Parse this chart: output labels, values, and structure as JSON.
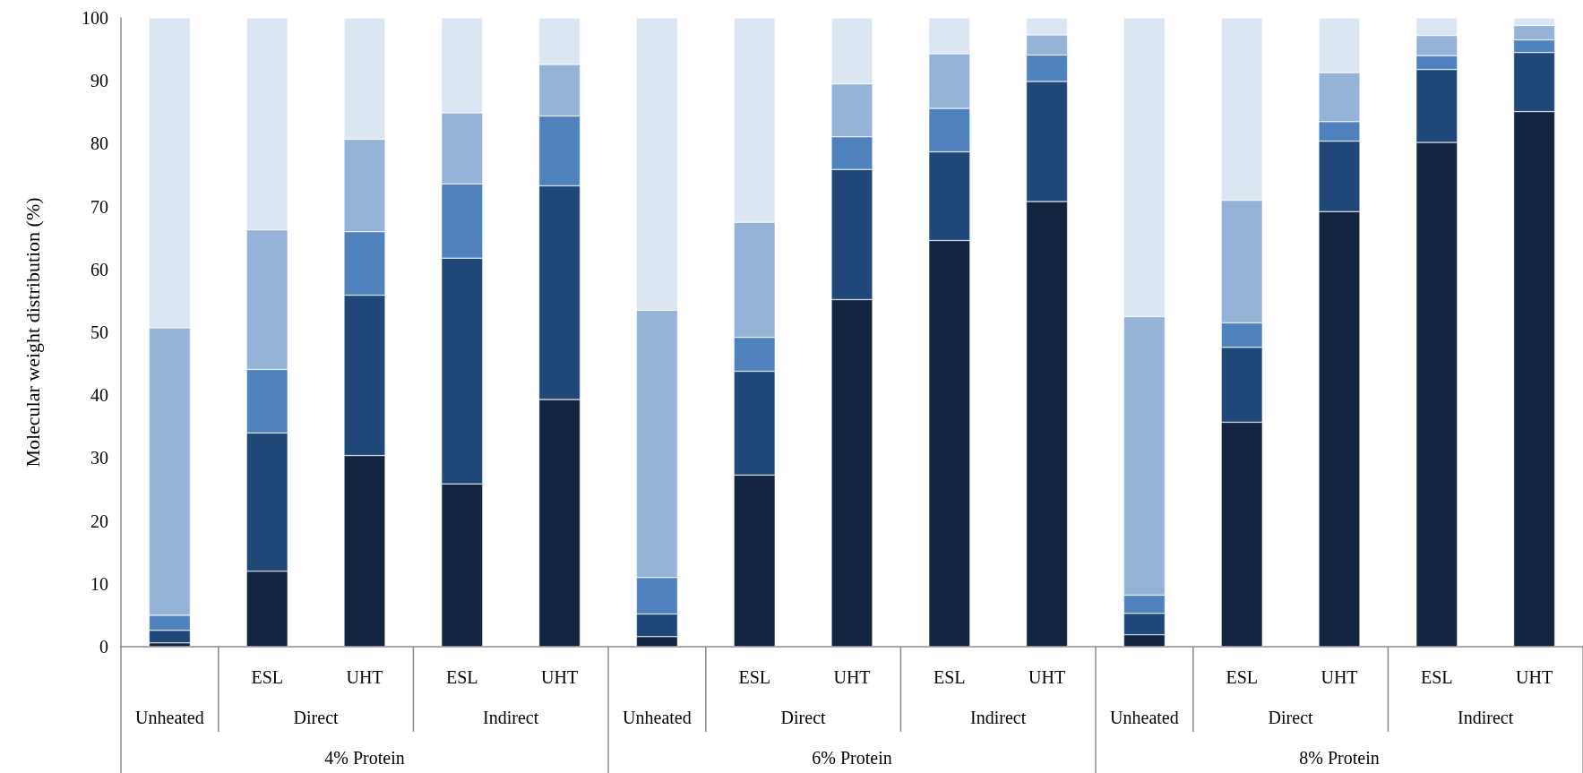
{
  "chart_data": {
    "type": "bar",
    "stacked": true,
    "ylabel": "Molecular weight distribution (%)",
    "categories": [
      null,
      "ESL",
      "UHT",
      "ESL",
      "UHT",
      null,
      "ESL",
      "UHT",
      "ESL",
      "UHT",
      null,
      "ESL",
      "UHT",
      "ESL",
      "UHT"
    ],
    "series": [
      {
        "color": "#12243f",
        "values": [
          0.6,
          12,
          30.4,
          25.9,
          39.3,
          1.6,
          27.3,
          55.2,
          64.6,
          70.8,
          1.9,
          35.7,
          69.2,
          80.2,
          85.1
        ]
      },
      {
        "color": "#1f4879",
        "values": [
          2.0,
          22,
          25.5,
          35.9,
          34.0,
          3.6,
          16.5,
          20.7,
          14.1,
          19.1,
          3.4,
          11.9,
          11.2,
          11.6,
          9.4
        ]
      },
      {
        "color": "#4f81bd",
        "values": [
          2.4,
          10.1,
          10.1,
          11.8,
          11.1,
          5.8,
          5.4,
          5.2,
          6.9,
          4.2,
          2.9,
          3.9,
          3.1,
          2.2,
          2.0
        ]
      },
      {
        "color": "#95b3d7",
        "values": [
          45.7,
          22.2,
          14.7,
          11.3,
          8.2,
          42.5,
          18.3,
          8.4,
          8.7,
          3.2,
          44.3,
          19.5,
          7.8,
          3.2,
          2.3
        ]
      },
      {
        "color": "#dce6f2",
        "values": [
          49.3,
          33.7,
          19.3,
          15.1,
          7.4,
          46.5,
          32.5,
          10.5,
          5.7,
          2.7,
          47.5,
          29.0,
          8.7,
          2.8,
          1.2
        ]
      }
    ],
    "ylim": [
      0,
      100
    ],
    "yticks": [
      0,
      10,
      20,
      30,
      40,
      50,
      60,
      70,
      80,
      90,
      100
    ],
    "grid": false,
    "annotations": [
      "Unheated",
      "Direct",
      "Indirect",
      "Unheated",
      "Direct",
      "Indirect",
      "Unheated",
      "Direct",
      "Indirect",
      "4% Protein",
      "6% Protein",
      "8% Protein"
    ]
  }
}
